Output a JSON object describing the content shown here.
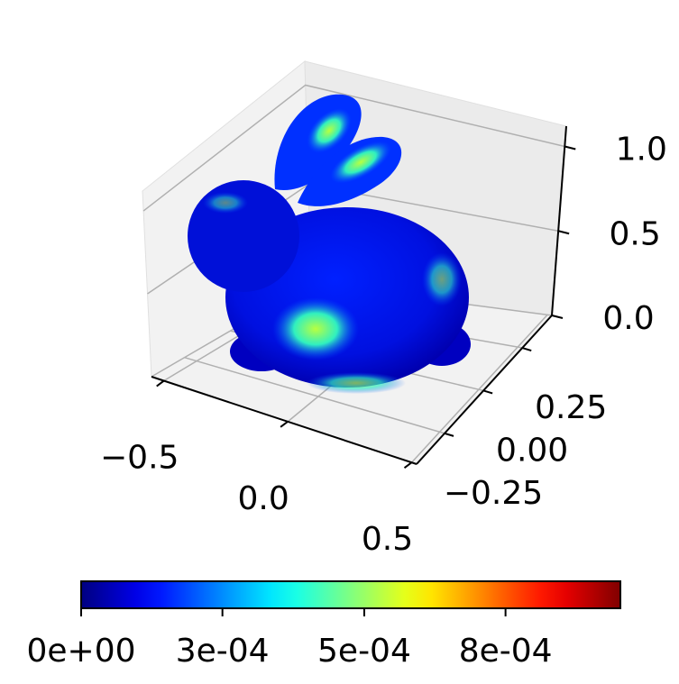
{
  "chart_data": {
    "type": "scatter3d",
    "colormap": "jet",
    "xlim": [
      -0.55,
      0.52
    ],
    "xticks": [
      {
        "value": -0.5,
        "label": "−0.5"
      },
      {
        "value": 0,
        "label": "0.0"
      },
      0.5
    ],
    "ylim": [
      -0.43,
      0.44
    ],
    "yticks": [
      {
        "value": -0.25,
        "label": "−0.25"
      },
      {
        "value": 0,
        "label": "0.00"
      },
      0.25
    ],
    "zlim": [
      0,
      1.12
    ],
    "zticks": [
      {
        "value": 0,
        "label": "0.0"
      },
      0.5,
      {
        "value": 1,
        "label": "1.0"
      }
    ],
    "grid": true,
    "colorbar": {
      "clim": [
        0,
        0.001
      ],
      "ticks": [
        {
          "value": 0,
          "label": "0e+00"
        },
        {
          "value": 0.000262,
          "label": "3e-04"
        },
        {
          "value": 0.000525,
          "label": "5e-04"
        },
        {
          "value": 0.000787,
          "label": "8e-04"
        }
      ]
    }
  }
}
